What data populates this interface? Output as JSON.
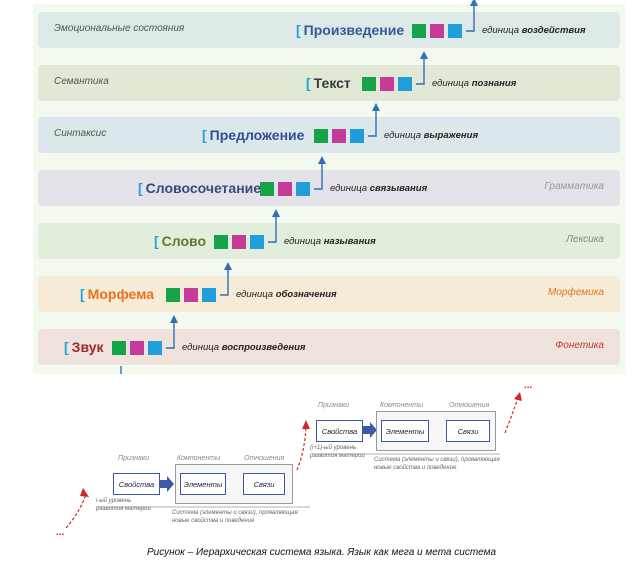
{
  "levels": [
    {
      "term": "Произведение",
      "unit_prefix": "единица ",
      "unit_bold": "воздействия",
      "left_label": "Эмоциональные состояния",
      "right_label": "",
      "band_color": "#dde9e6",
      "term_color": "#355a9c",
      "right_color": "#999999"
    },
    {
      "term": "Текст",
      "unit_prefix": "единица ",
      "unit_bold": "познания",
      "left_label": "Семантика",
      "right_label": "",
      "band_color": "#e2e8d6",
      "term_color": "#3a3a3a",
      "right_color": "#999999"
    },
    {
      "term": "Предложение",
      "unit_prefix": "единица ",
      "unit_bold": "выражения",
      "left_label": "Синтаксис",
      "right_label": "",
      "band_color": "#dbe7ea",
      "term_color": "#2f4f9a",
      "right_color": "#999999"
    },
    {
      "term": "Словосочетание",
      "unit_prefix": "единица ",
      "unit_bold": "связывания",
      "left_label": "",
      "right_label": "Грамматика",
      "band_color": "#e2e2e8",
      "term_color": "#3a4a7a",
      "right_color": "#999999"
    },
    {
      "term": "Слово",
      "unit_prefix": "единица ",
      "unit_bold": "называния",
      "left_label": "",
      "right_label": "Лексика",
      "band_color": "#e0eedb",
      "term_color": "#5d7a2d",
      "right_color": "#888888"
    },
    {
      "term": "Морфема",
      "unit_prefix": "единица ",
      "unit_bold": "обозначения",
      "left_label": "",
      "right_label": "Морфемика",
      "band_color": "#f5ebd6",
      "term_color": "#e8721c",
      "right_color": "#e8721c"
    },
    {
      "term": "Звук",
      "unit_prefix": "единица ",
      "unit_bold": "воспроизведения",
      "left_label": "",
      "right_label": "Фонетика",
      "band_color": "#efe2dc",
      "term_color": "#9c2a2a",
      "right_color": "#c0392b"
    }
  ],
  "lower": {
    "left": {
      "priznaki": "Признаки",
      "komponenty": "Компоненты",
      "otnosheniya": "Отношения",
      "svoistva": "Свойства",
      "elementy": "Элементы",
      "svyazi": "Связи",
      "level_note": "i-ый уровень\nразвития материи",
      "system_note": "Система (элементы и связи), проявляющая\nновые свойства и поведение"
    },
    "right": {
      "priznaki": "Признаки",
      "komponenty": "Компоненты",
      "otnosheniya": "Отношения",
      "svoistva": "Свойства",
      "elementy": "Элементы",
      "svyazi": "Связи",
      "level_note": "(i+1)-ый уровень\nразвития материи",
      "system_note": "Система (элементы и связи), проявляющая\nновые свойства и поведение"
    },
    "ellipsis": "...",
    "colors": {
      "arrow": "#d0282a",
      "box_border": "#3b5aa6",
      "block_arrow": "#3b5aa6"
    }
  },
  "caption": "Рисунок – Иерархическая система языка. Язык как мега и мета система"
}
